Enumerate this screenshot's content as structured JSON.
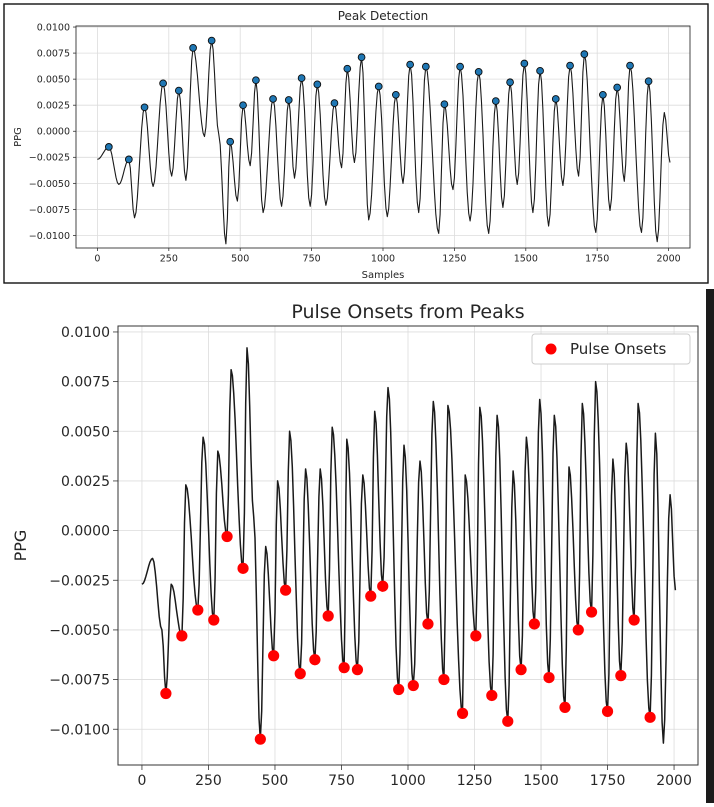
{
  "chart_data": [
    {
      "type": "line",
      "title": "Peak Detection",
      "xlabel": "Samples",
      "ylabel": "PPG",
      "xlim": [
        -75,
        2075
      ],
      "ylim": [
        -0.0112,
        0.0101
      ],
      "grid": true,
      "x_ticks": [
        0,
        250,
        500,
        750,
        1000,
        1250,
        1500,
        1750,
        2000
      ],
      "x_tick_labels": [
        "0",
        "250",
        "500",
        "750",
        "1000",
        "1250",
        "1500",
        "1750",
        "2000"
      ],
      "y_ticks": [
        -0.01,
        -0.0075,
        -0.005,
        -0.0025,
        0.0,
        0.0025,
        0.005,
        0.0075,
        0.01
      ],
      "y_tick_labels": [
        "−0.0100",
        "−0.0075",
        "−0.0050",
        "−0.0025",
        "0.0000",
        "0.0025",
        "0.0050",
        "0.0075",
        "0.0100"
      ],
      "line_color": "#1a1a1a",
      "marker_color": "#1f77b4",
      "peaks": {
        "x": [
          40,
          110,
          165,
          230,
          285,
          335,
          400,
          465,
          510,
          555,
          615,
          670,
          715,
          770,
          830,
          875,
          925,
          985,
          1045,
          1095,
          1150,
          1215,
          1270,
          1335,
          1395,
          1445,
          1495,
          1550,
          1605,
          1655,
          1705,
          1770,
          1820,
          1865,
          1930
        ],
        "y": [
          -0.0015,
          -0.0027,
          0.0023,
          0.0046,
          0.0039,
          0.008,
          0.0087,
          -0.001,
          0.0025,
          0.0049,
          0.0031,
          0.003,
          0.0051,
          0.0045,
          0.0027,
          0.006,
          0.0071,
          0.0043,
          0.0035,
          0.0064,
          0.0062,
          0.0026,
          0.0062,
          0.0057,
          0.0029,
          0.0047,
          0.0065,
          0.0058,
          0.0031,
          0.0063,
          0.0074,
          0.0035,
          0.0042,
          0.0063,
          0.0048
        ]
      }
    },
    {
      "type": "line",
      "title": "Pulse Onsets from Peaks",
      "xlabel": "",
      "ylabel": "PPG",
      "xlim": [
        -90,
        2090
      ],
      "ylim": [
        -0.0118,
        0.0103
      ],
      "grid": true,
      "legend": {
        "position": "top-right",
        "label": "Pulse Onsets"
      },
      "x_ticks": [
        0,
        250,
        500,
        750,
        1000,
        1250,
        1500,
        1750,
        2000
      ],
      "x_tick_labels": [
        "0",
        "250",
        "500",
        "750",
        "1000",
        "1250",
        "1500",
        "1750",
        "2000"
      ],
      "y_ticks": [
        -0.01,
        -0.0075,
        -0.005,
        -0.0025,
        0.0,
        0.0025,
        0.005,
        0.0075,
        0.01
      ],
      "y_tick_labels": [
        "−0.0100",
        "−0.0075",
        "−0.0050",
        "−0.0025",
        "0.0000",
        "0.0025",
        "0.0050",
        "0.0075",
        "0.0100"
      ],
      "line_color": "#1a1a1a",
      "marker_color": "#ff0000",
      "onsets": {
        "x": [
          90,
          150,
          210,
          270,
          320,
          380,
          445,
          495,
          540,
          595,
          650,
          700,
          760,
          810,
          860,
          905,
          965,
          1020,
          1075,
          1135,
          1205,
          1255,
          1315,
          1375,
          1425,
          1475,
          1530,
          1590,
          1640,
          1690,
          1750,
          1800,
          1850,
          1910
        ],
        "y": [
          -0.0082,
          -0.0053,
          -0.004,
          -0.0045,
          -0.0003,
          -0.0019,
          -0.0105,
          -0.0063,
          -0.003,
          -0.0072,
          -0.0065,
          -0.0043,
          -0.0069,
          -0.007,
          -0.0033,
          -0.0028,
          -0.008,
          -0.0078,
          -0.0047,
          -0.0075,
          -0.0092,
          -0.0053,
          -0.0083,
          -0.0096,
          -0.007,
          -0.0047,
          -0.0074,
          -0.0089,
          -0.005,
          -0.0041,
          -0.0091,
          -0.0073,
          -0.0045,
          -0.0094
        ]
      }
    }
  ]
}
